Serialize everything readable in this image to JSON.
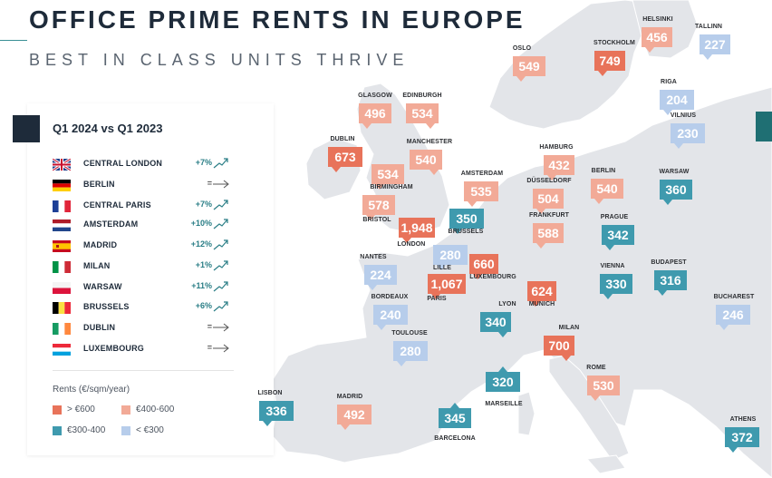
{
  "header": {
    "title": "OFFICE PRIME RENTS IN EUROPE",
    "subtitle": "BEST IN CLASS UNITS THRIVE"
  },
  "colors": {
    "gt600": "#e8735a",
    "r400_600": "#f2aa97",
    "r300_400": "#3f9aae",
    "lt300": "#b7cdeb",
    "land": "#e3e5e9",
    "sea": "#ffffff"
  },
  "legend": {
    "title": "Q1 2024 vs Q1 2023",
    "rows": [
      {
        "market": "CENTRAL LONDON",
        "change": "+7%",
        "trend": "up",
        "flag": "uk-flag-icon"
      },
      {
        "market": "BERLIN",
        "change": "=",
        "trend": "flat",
        "flag": "germany-flag-icon"
      },
      {
        "market": "CENTRAL PARIS",
        "change": "+7%",
        "trend": "up",
        "flag": "france-flag-icon"
      },
      {
        "market": "AMSTERDAM",
        "change": "+10%",
        "trend": "up",
        "flag": "netherlands-flag-icon"
      },
      {
        "market": "MADRID",
        "change": "+12%",
        "trend": "up",
        "flag": "spain-flag-icon"
      },
      {
        "market": "MILAN",
        "change": "+1%",
        "trend": "up",
        "flag": "italy-flag-icon"
      },
      {
        "market": "WARSAW",
        "change": "+11%",
        "trend": "up",
        "flag": "poland-flag-icon"
      },
      {
        "market": "BRUSSELS",
        "change": "+6%",
        "trend": "up",
        "flag": "belgium-flag-icon"
      },
      {
        "market": "DUBLIN",
        "change": "=",
        "trend": "flat",
        "flag": "ireland-flag-icon"
      },
      {
        "market": "LUXEMBOURG",
        "change": "=",
        "trend": "flat",
        "flag": "luxembourg-flag-icon"
      }
    ],
    "rents_title": "Rents (€/sqm/year)",
    "classes": [
      {
        "label": "> €600",
        "color_key": "gt600"
      },
      {
        "label": "€400-600",
        "color_key": "r400_600"
      },
      {
        "label": "€300-400",
        "color_key": "r300_400"
      },
      {
        "label": "< €300",
        "color_key": "lt300"
      }
    ]
  },
  "cities": [
    {
      "name": "HELSINKI",
      "rent": "456",
      "class": "r400_600"
    },
    {
      "name": "TALLINN",
      "rent": "227",
      "class": "lt300"
    },
    {
      "name": "OSLO",
      "rent": "549",
      "class": "r400_600"
    },
    {
      "name": "STOCKHOLM",
      "rent": "749",
      "class": "gt600"
    },
    {
      "name": "RIGA",
      "rent": "204",
      "class": "lt300"
    },
    {
      "name": "VILNIUS",
      "rent": "230",
      "class": "lt300"
    },
    {
      "name": "GLASGOW",
      "rent": "496",
      "class": "r400_600"
    },
    {
      "name": "EDINBURGH",
      "rent": "534",
      "class": "r400_600"
    },
    {
      "name": "DUBLIN",
      "rent": "673",
      "class": "gt600"
    },
    {
      "name": "MANCHESTER",
      "rent": "540",
      "class": "r400_600"
    },
    {
      "name": "BIRMINGHAM",
      "rent": "534",
      "class": "r400_600"
    },
    {
      "name": "BRISTOL",
      "rent": "578",
      "class": "r400_600"
    },
    {
      "name": "LONDON",
      "rent": "1,948",
      "class": "gt600"
    },
    {
      "name": "AMSTERDAM",
      "rent": "535",
      "class": "r400_600"
    },
    {
      "name": "HAMBURG",
      "rent": "432",
      "class": "r400_600"
    },
    {
      "name": "BERLIN",
      "rent": "540",
      "class": "r400_600"
    },
    {
      "name": "WARSAW",
      "rent": "360",
      "class": "r300_400"
    },
    {
      "name": "DÜSSELDORF",
      "rent": "504",
      "class": "r400_600"
    },
    {
      "name": "BRUSSELS",
      "rent": "350",
      "class": "r300_400"
    },
    {
      "name": "FRANKFURT",
      "rent": "588",
      "class": "r400_600"
    },
    {
      "name": "PRAGUE",
      "rent": "342",
      "class": "r300_400"
    },
    {
      "name": "LILLE",
      "rent": "280",
      "class": "lt300"
    },
    {
      "name": "LUXEMBOURG",
      "rent": "660",
      "class": "gt600"
    },
    {
      "name": "PARIS",
      "rent": "1,067",
      "class": "gt600"
    },
    {
      "name": "NANTES",
      "rent": "224",
      "class": "lt300"
    },
    {
      "name": "MUNICH",
      "rent": "624",
      "class": "gt600"
    },
    {
      "name": "VIENNA",
      "rent": "330",
      "class": "r300_400"
    },
    {
      "name": "BUDAPEST",
      "rent": "316",
      "class": "r300_400"
    },
    {
      "name": "BORDEAUX",
      "rent": "240",
      "class": "lt300"
    },
    {
      "name": "LYON",
      "rent": "340",
      "class": "r300_400"
    },
    {
      "name": "BUCHAREST",
      "rent": "246",
      "class": "lt300"
    },
    {
      "name": "TOULOUSE",
      "rent": "280",
      "class": "lt300"
    },
    {
      "name": "MILAN",
      "rent": "700",
      "class": "gt600"
    },
    {
      "name": "MARSEILLE",
      "rent": "320",
      "class": "r300_400"
    },
    {
      "name": "ROME",
      "rent": "530",
      "class": "r400_600"
    },
    {
      "name": "LISBON",
      "rent": "336",
      "class": "r300_400"
    },
    {
      "name": "MADRID",
      "rent": "492",
      "class": "r400_600"
    },
    {
      "name": "BARCELONA",
      "rent": "345",
      "class": "r300_400"
    },
    {
      "name": "ATHENS",
      "rent": "372",
      "class": "r300_400"
    }
  ]
}
